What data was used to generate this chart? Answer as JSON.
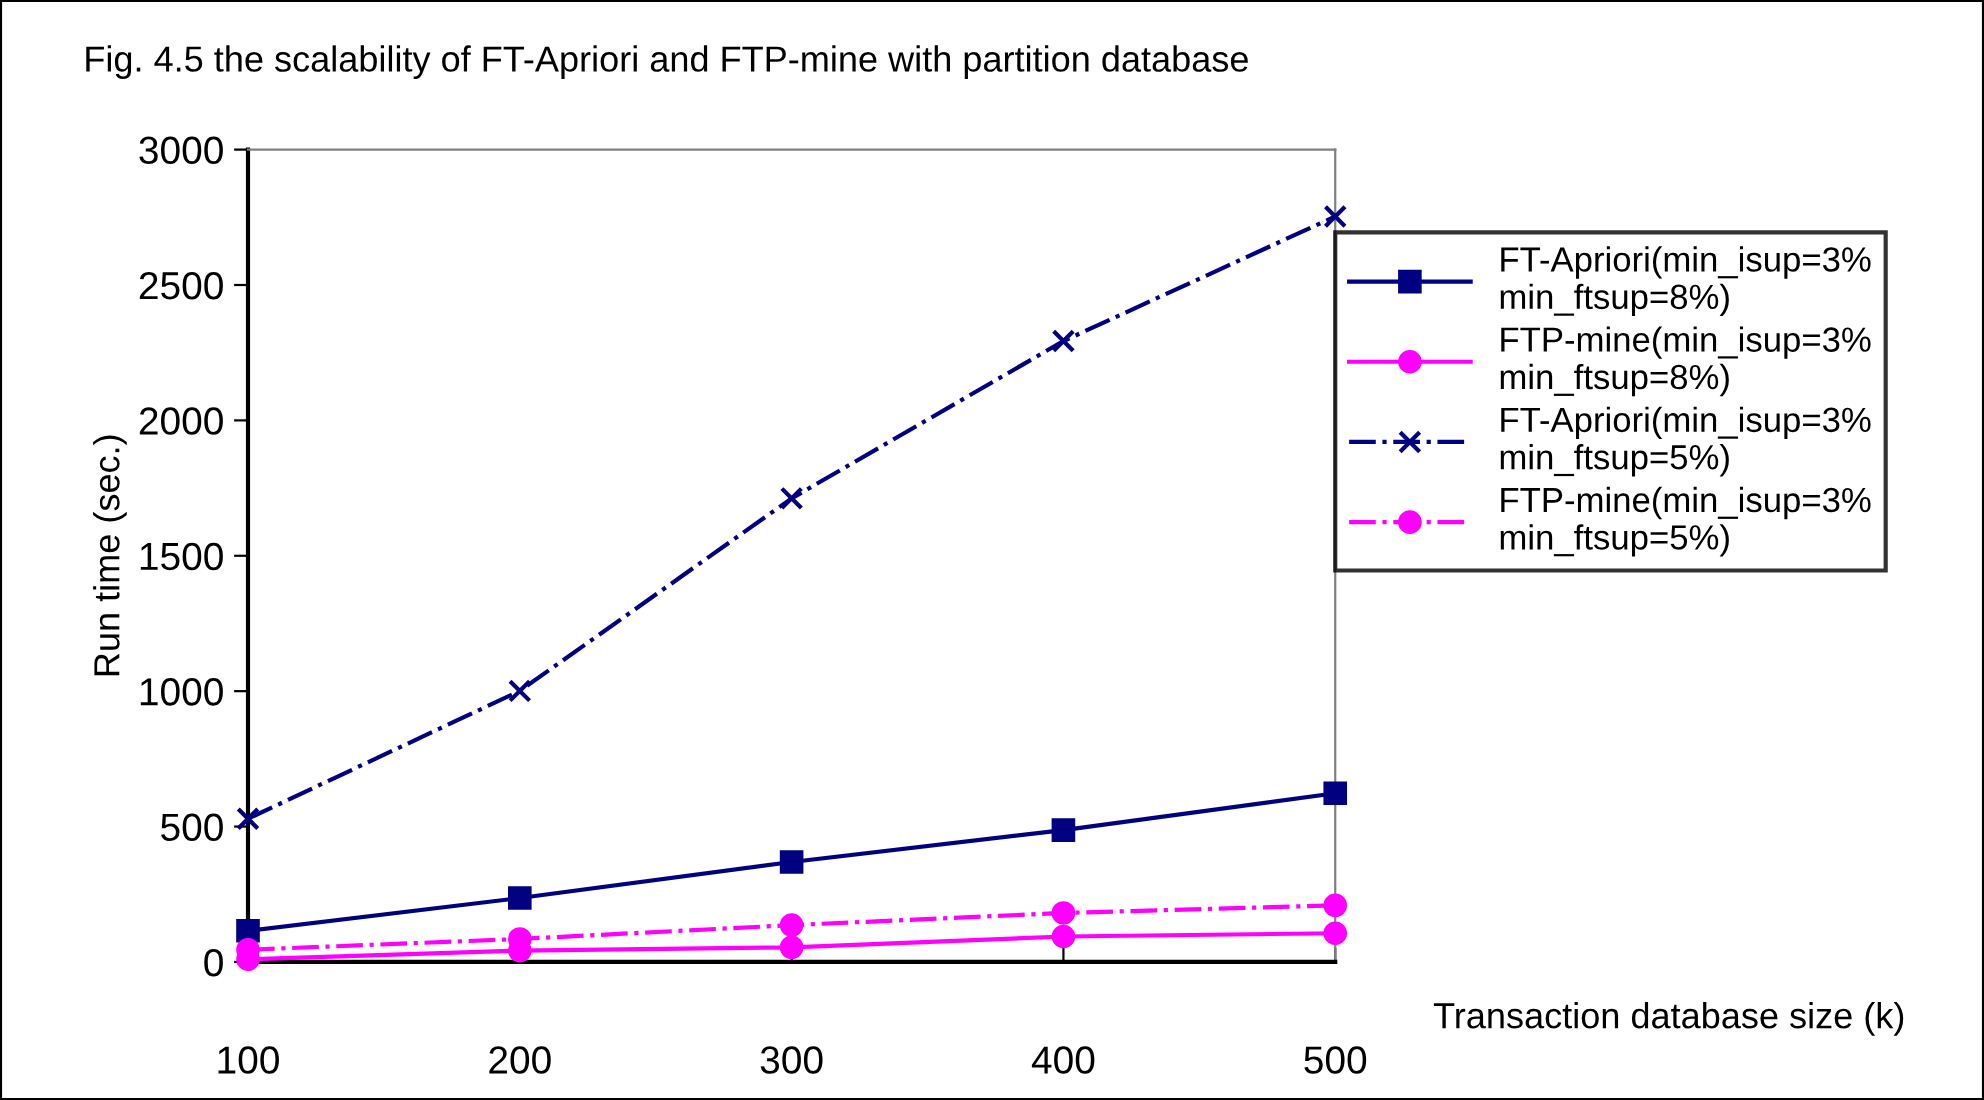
{
  "chart_data": {
    "type": "line",
    "title": "Fig. 4.5 the scalability of FT-Apriori and FTP-mine with partition database",
    "xlabel": "Transaction database size (k)",
    "ylabel": "Run time (sec.)",
    "x": [
      100,
      200,
      300,
      400,
      500
    ],
    "series": [
      {
        "name": "FT-Apriori(min_isup=3%\nmin_ftsup=8%)",
        "color": "#000080",
        "marker": "square",
        "line_style": "solid",
        "values": [
          115,
          236,
          369,
          487,
          623
        ]
      },
      {
        "name": "FTP-mine(min_isup=3%\nmin_ftsup=8%)",
        "color": "#ff00ff",
        "marker": "circle",
        "line_style": "solid",
        "values": [
          10,
          42,
          54,
          94,
          106
        ]
      },
      {
        "name": "FT-Apriori(min_isup=3%\nmin_ftsup=5%)",
        "color": "#000080",
        "marker": "cross",
        "line_style": "dashed",
        "values": [
          529,
          1001,
          1712,
          2293,
          2753
        ]
      },
      {
        "name": "FTP-mine(min_isup=3%\nmin_ftsup=5%)",
        "color": "#ff00ff",
        "marker": "circle",
        "line_style": "dashed",
        "values": [
          45,
          85,
          136,
          181,
          209
        ]
      }
    ],
    "xlim": [
      100,
      500
    ],
    "xticks": [
      100,
      200,
      300,
      400,
      500
    ],
    "ylim": [
      0,
      3000
    ],
    "yticks": [
      0,
      500,
      1000,
      1500,
      2000,
      2500,
      3000
    ],
    "grid": false,
    "legend": "right"
  }
}
